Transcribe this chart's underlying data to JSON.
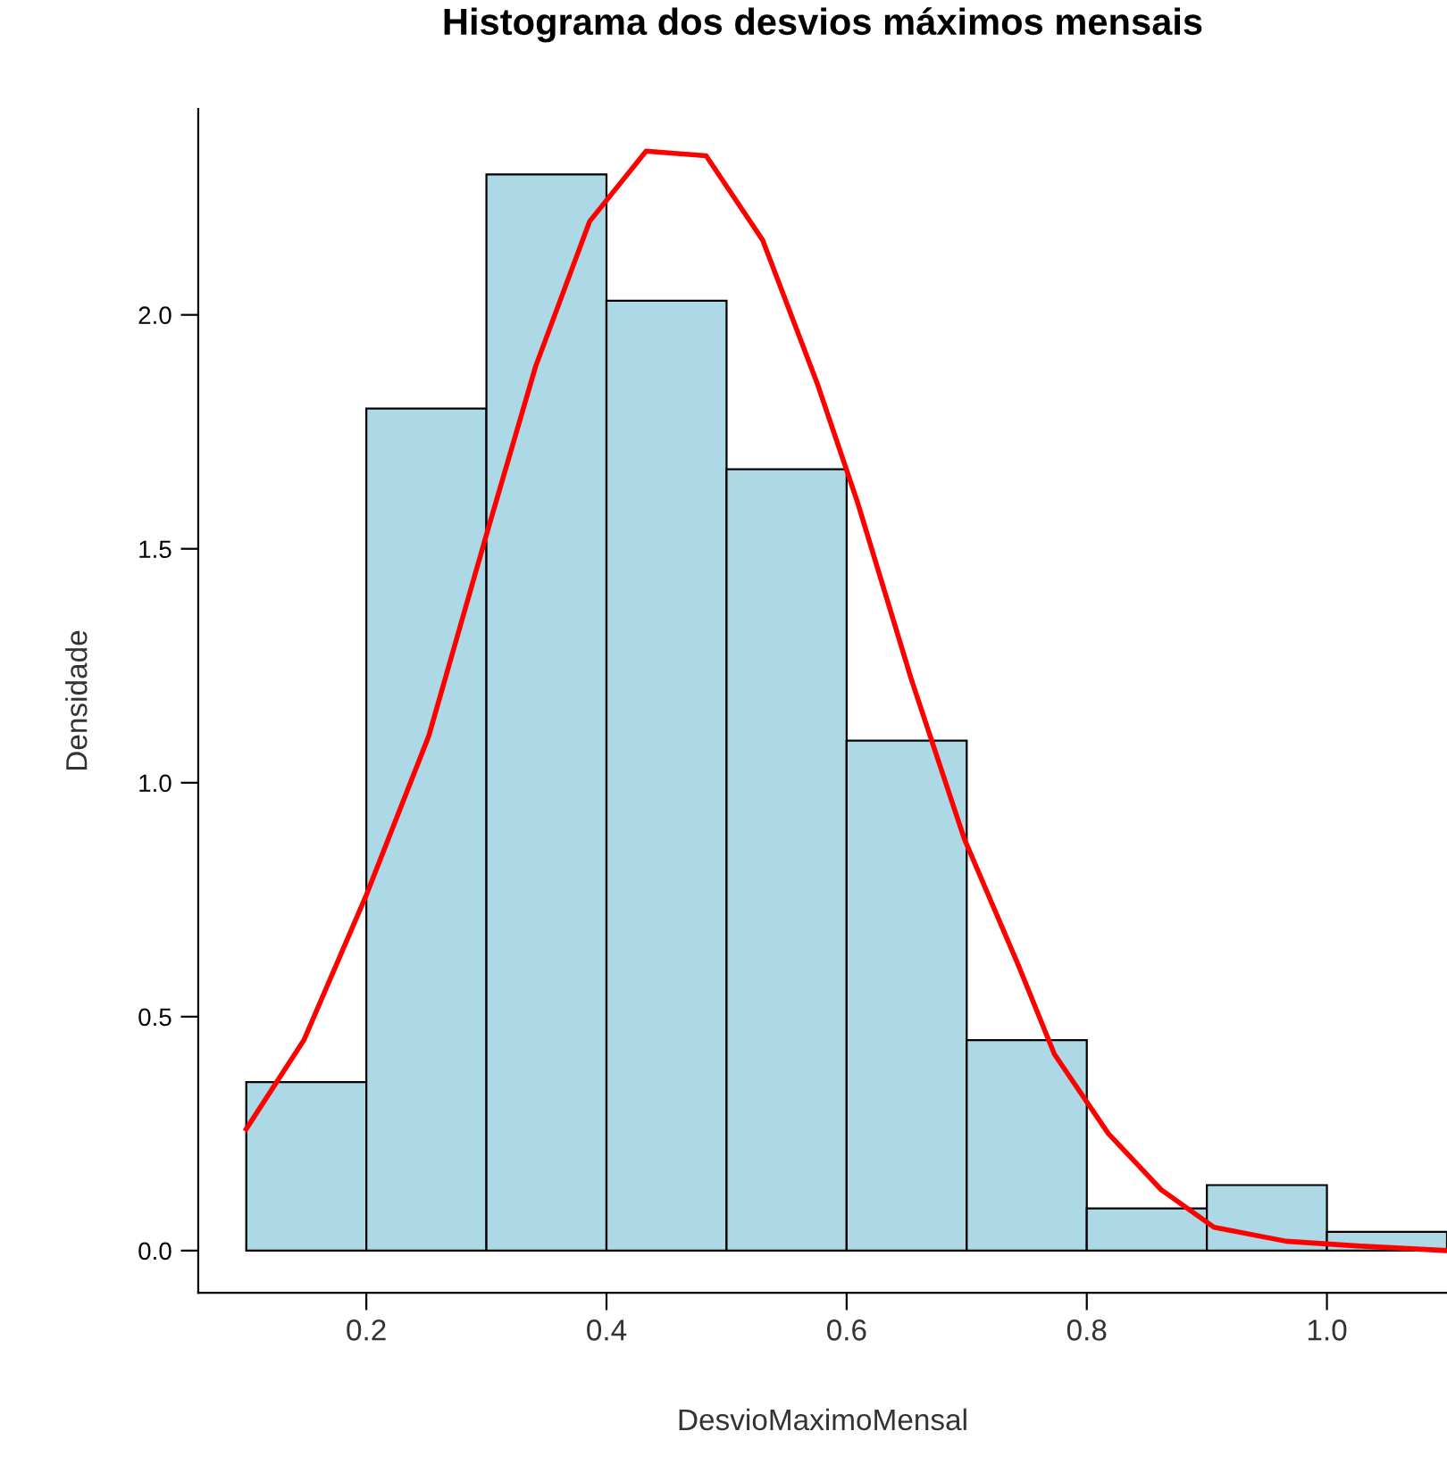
{
  "chart_data": {
    "type": "histogram",
    "title": "Histograma dos desvios máximos mensais",
    "xlabel": "DesvioMaximoMensal",
    "ylabel": "Densidade",
    "bins": [
      0.1,
      0.2,
      0.3,
      0.4,
      0.5,
      0.6,
      0.7,
      0.8,
      0.9,
      1.0,
      1.1
    ],
    "values": [
      0.36,
      1.8,
      2.3,
      2.03,
      1.67,
      1.09,
      0.45,
      0.09,
      0.14,
      0.04
    ],
    "color": "#add8e6",
    "series": [
      {
        "type": "line",
        "color": "#ff0000",
        "x": [
          0.1,
          0.148,
          0.2,
          0.252,
          0.3,
          0.341,
          0.386,
          0.433,
          0.483,
          0.53,
          0.576,
          0.609,
          0.654,
          0.698,
          0.743,
          0.773,
          0.818,
          0.862,
          0.906,
          0.966,
          1.025,
          1.1
        ],
        "values": [
          0.26,
          0.45,
          0.76,
          1.1,
          1.53,
          1.89,
          2.2,
          2.35,
          2.34,
          2.16,
          1.85,
          1.6,
          1.22,
          0.88,
          0.61,
          0.42,
          0.25,
          0.13,
          0.05,
          0.02,
          0.01,
          0.0
        ]
      }
    ],
    "xlim": [
      0.06,
      1.1
    ],
    "ylim": [
      -0.09,
      2.44
    ],
    "xticks": [
      0.2,
      0.4,
      0.6,
      0.8,
      {
        "value": 1,
        "label": "1.0"
      }
    ],
    "yticks": [
      {
        "value": 0,
        "label": "0.0"
      },
      0.5,
      {
        "value": 1,
        "label": "1.0"
      },
      1.5,
      {
        "value": 2,
        "label": "2.0"
      }
    ],
    "grid": false,
    "legend": false
  }
}
